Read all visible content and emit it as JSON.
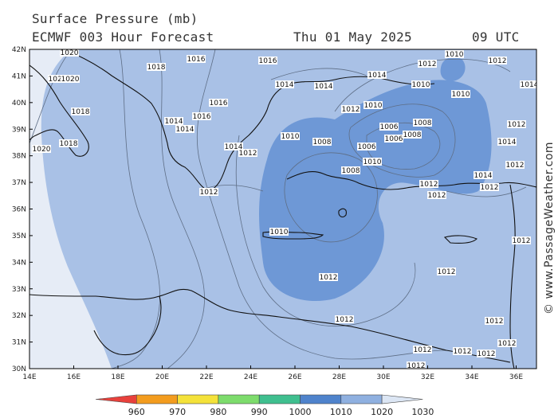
{
  "header": {
    "title": "Surface Pressure (mb)",
    "model": "ECMWF 003 Hour Forecast",
    "date": "Thu 01 May 2025",
    "time": "09 UTC"
  },
  "watermark": "© www.PassageWeather.com",
  "lat_labels": [
    "42N",
    "41N",
    "40N",
    "39N",
    "38N",
    "37N",
    "36N",
    "35N",
    "34N",
    "33N",
    "32N",
    "31N",
    "30N"
  ],
  "lon_labels": [
    "14E",
    "16E",
    "18E",
    "20E",
    "22E",
    "24E",
    "26E",
    "28E",
    "30E",
    "32E",
    "34E",
    "36E"
  ],
  "scale": {
    "labels": [
      "960",
      "970",
      "980",
      "990",
      "1000",
      "1010",
      "1020",
      "1030"
    ],
    "colors": [
      "#e8413c",
      "#f39c1e",
      "#f4e23a",
      "#7ddc6c",
      "#3fbf8f",
      "#4f83cc",
      "#8fb0e0",
      "#dce6f4"
    ]
  },
  "colors": {
    "sea_1015": "#a9c1e6",
    "low_1010": "#6e98d6",
    "high_1020": "#e6ecf6",
    "coast": "#111111"
  },
  "isobar_labels": [
    {
      "text": "1020"
    },
    {
      "text": "1018"
    },
    {
      "text": "1016"
    },
    {
      "text": "1016"
    },
    {
      "text": "1020"
    },
    {
      "text": "1020"
    },
    {
      "text": "1018"
    },
    {
      "text": "1016"
    },
    {
      "text": "1014"
    },
    {
      "text": "1014"
    },
    {
      "text": "1014"
    },
    {
      "text": "1014"
    },
    {
      "text": "1014"
    },
    {
      "text": "1012"
    },
    {
      "text": "1010"
    },
    {
      "text": "1010"
    },
    {
      "text": "1008"
    },
    {
      "text": "1006"
    },
    {
      "text": "1008"
    },
    {
      "text": "1006"
    },
    {
      "text": "1006"
    },
    {
      "text": "1008"
    },
    {
      "text": "1012"
    },
    {
      "text": "1010"
    },
    {
      "text": "1010"
    },
    {
      "text": "1012"
    },
    {
      "text": "1014"
    },
    {
      "text": "1012"
    },
    {
      "text": "1014"
    },
    {
      "text": "1012"
    },
    {
      "text": "1008"
    },
    {
      "text": "1010"
    },
    {
      "text": "1012"
    },
    {
      "text": "1012"
    },
    {
      "text": "1014"
    },
    {
      "text": "1012"
    },
    {
      "text": "1012"
    },
    {
      "text": "1012"
    },
    {
      "text": "1012"
    },
    {
      "text": "1020"
    },
    {
      "text": "1018"
    },
    {
      "text": "1016"
    },
    {
      "text": "1014"
    },
    {
      "text": "1012"
    },
    {
      "text": "1010"
    },
    {
      "text": "1010"
    },
    {
      "text": "1012"
    },
    {
      "text": "1012"
    },
    {
      "text": "1012"
    },
    {
      "text": "1012"
    },
    {
      "text": "1012"
    },
    {
      "text": "1012"
    },
    {
      "text": "1010"
    },
    {
      "text": "1012"
    },
    {
      "text": "1012"
    }
  ]
}
